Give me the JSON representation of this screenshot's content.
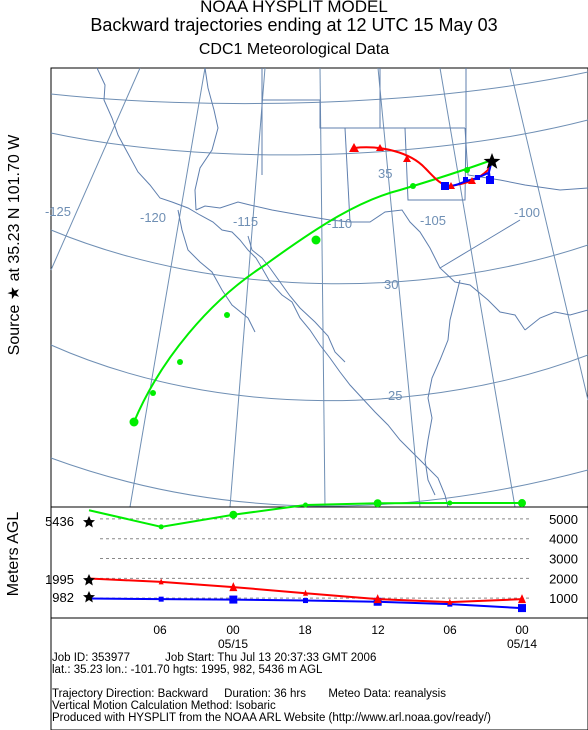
{
  "header": {
    "line1": "NOAA HYSPLIT MODEL",
    "line2": "Backward trajectories ending at 12 UTC 15 May 03",
    "line3": "CDC1 Meteorological Data"
  },
  "side_label": "Source ★ at   35.23 N  101.70 W",
  "map": {
    "lon_labels": [
      "-125",
      "-120",
      "-115",
      "-110",
      "-105",
      "-100"
    ],
    "lat_labels": [
      "35",
      "30",
      "25"
    ],
    "colors": {
      "grid": "#6f8fb4",
      "border": "#5f7fae",
      "red": "#ff0000",
      "blue": "#0000ff",
      "green": "#00ee00"
    }
  },
  "height_panel": {
    "ylabel": "Meters AGL",
    "source_heights": [
      "5436",
      "1995",
      "982"
    ],
    "y_ticks": [
      "5000",
      "4000",
      "3000",
      "2000",
      "1000"
    ],
    "time_ticks": [
      "06",
      "00",
      "18",
      "12",
      "06",
      "00"
    ],
    "date_labels": [
      "05/15",
      "05/14"
    ]
  },
  "chart_data": {
    "type": "line",
    "x": [
      0,
      6,
      12,
      18,
      24,
      30,
      36
    ],
    "xlabel": "",
    "ylabel": "Meters AGL",
    "ylim": [
      0,
      5600
    ],
    "series": [
      {
        "values": [
          982,
          950,
          930,
          880,
          820,
          700,
          500
        ]
      },
      {
        "values": [
          1995,
          1820,
          1560,
          1250,
          950,
          800,
          950
        ]
      },
      {
        "values": [
          5436,
          4600,
          5210,
          5700,
          5790,
          5800,
          5800
        ]
      }
    ]
  },
  "footer": {
    "job_id": "Job ID: 353977",
    "job_start": "Job Start: Thu Jul 13 20:37:33 GMT 2006",
    "source": "lat.: 35.23  lon.: -101.70  hgts: 1995, 982, 5436 m AGL",
    "direction": "Trajectory Direction: Backward",
    "duration": "Duration: 36 hrs",
    "meteo": "Meteo Data: reanalysis",
    "vertical": "Vertical Motion Calculation Method: Isobaric",
    "produced": "Produced with HYSPLIT from the NOAA ARL Website (http://www.arl.noaa.gov/ready/)"
  }
}
